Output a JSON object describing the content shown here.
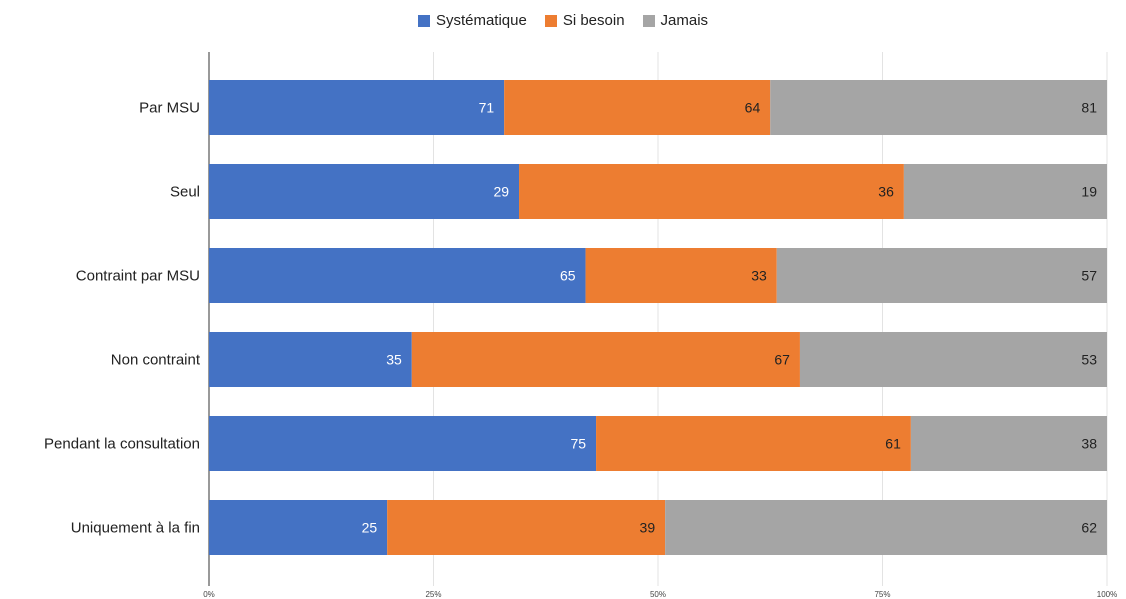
{
  "chart_data": {
    "type": "bar",
    "orientation": "horizontal",
    "stacked": "percent",
    "categories": [
      "Par MSU",
      "Seul",
      "Contraint par MSU",
      "Non contraint",
      "Pendant la consultation",
      "Uniquement à la fin"
    ],
    "series": [
      {
        "name": "Systématique",
        "color": "#4472c4",
        "values": [
          71,
          29,
          65,
          35,
          75,
          25
        ]
      },
      {
        "name": "Si besoin",
        "color": "#ed7d31",
        "values": [
          64,
          36,
          33,
          67,
          61,
          39
        ]
      },
      {
        "name": "Jamais",
        "color": "#a5a5a5",
        "values": [
          81,
          19,
          57,
          53,
          38,
          62
        ]
      }
    ],
    "x_ticks": [
      "0%",
      "25%",
      "50%",
      "75%",
      "100%"
    ],
    "xlim": [
      0,
      100
    ],
    "grid": "vertical",
    "legend_position": "top-center"
  }
}
